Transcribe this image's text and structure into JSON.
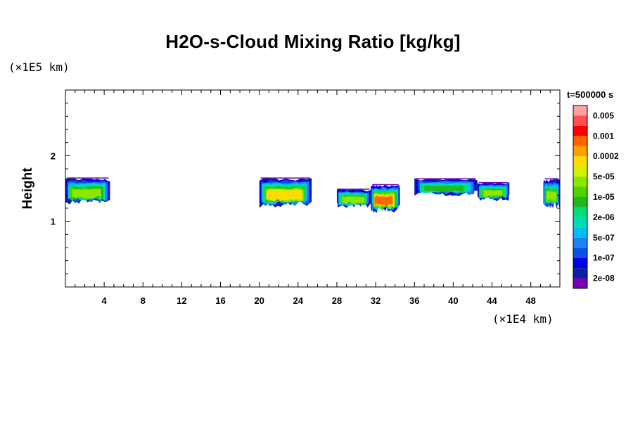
{
  "chart_data": {
    "type": "heatmap",
    "title": "H2O-s-Cloud Mixing Ratio [kg/kg]",
    "xunit": "(×1E4 km)",
    "yunit": "(×1E5 km)",
    "ylabel": "Height",
    "xlabel": "",
    "time_label": "t=500000 s",
    "xlim": [
      0,
      51
    ],
    "ylim": [
      0,
      3
    ],
    "x_ticks": [
      4,
      8,
      12,
      16,
      20,
      24,
      28,
      32,
      36,
      40,
      44,
      48
    ],
    "y_ticks": [
      1,
      2
    ],
    "colorbar": {
      "colors": [
        "#7b00b4",
        "#0a20a0",
        "#0000e6",
        "#0a50e6",
        "#1e82f0",
        "#00bef0",
        "#00dcb4",
        "#00dc78",
        "#1eb91e",
        "#50d200",
        "#8ce600",
        "#d2f000",
        "#ffdc00",
        "#ffa000",
        "#ff6400",
        "#ff0000",
        "#ff5050",
        "#ffa0a0"
      ],
      "labels": [
        "2e-08",
        "1e-07",
        "5e-07",
        "2e-06",
        "1e-05",
        "5e-05",
        "0.0002",
        "0.001",
        "0.005"
      ]
    },
    "cloud_regions": [
      {
        "x": [
          0.0,
          4.6
        ],
        "y": [
          1.25,
          1.67
        ],
        "peak": "1e-05"
      },
      {
        "x": [
          20.0,
          25.4
        ],
        "y": [
          1.2,
          1.67
        ],
        "peak": "5e-05"
      },
      {
        "x": [
          28.0,
          31.5
        ],
        "y": [
          1.2,
          1.5
        ],
        "peak": "1e-05"
      },
      {
        "x": [
          31.5,
          34.5
        ],
        "y": [
          1.12,
          1.57
        ],
        "peak": "0.0002"
      },
      {
        "x": [
          36.0,
          42.5
        ],
        "y": [
          1.38,
          1.66
        ],
        "peak": "2e-06"
      },
      {
        "x": [
          42.5,
          45.8
        ],
        "y": [
          1.3,
          1.6
        ],
        "peak": "1e-05"
      },
      {
        "x": [
          49.3,
          51.0
        ],
        "y": [
          1.18,
          1.66
        ],
        "peak": "1e-05"
      }
    ]
  }
}
